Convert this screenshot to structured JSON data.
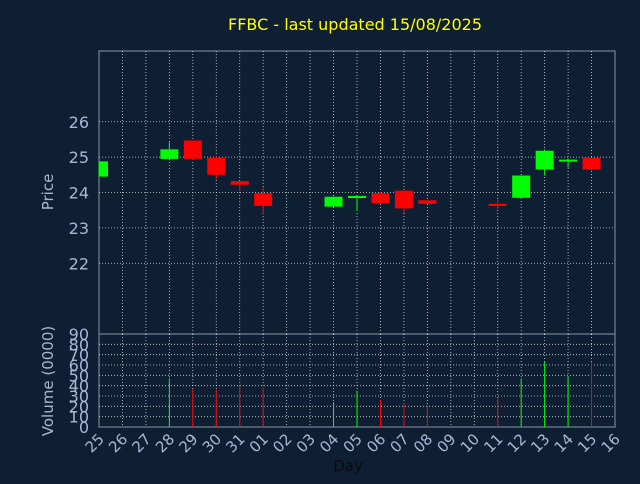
{
  "chart_data": [
    {
      "type": "candlestick",
      "title": "FFBC - last updated 15/08/2025",
      "xlabel": "",
      "ylabel": "Price",
      "ylim": [
        20,
        28
      ],
      "yticks": [
        22,
        23,
        24,
        25,
        26
      ],
      "grid": true,
      "colors": {
        "up": "#00ff00",
        "down": "#ff0000",
        "title": "#ffff00",
        "axis_text": "#a6b8d6",
        "grid": "#ffffff",
        "plot_bg": "#0f1f33"
      },
      "candles": [
        {
          "date": "25",
          "open": 24.45,
          "close": 24.88,
          "high": 24.88,
          "low": 24.45
        },
        {
          "date": "28",
          "open": 24.95,
          "close": 25.22,
          "high": 25.42,
          "low": 24.95
        },
        {
          "date": "29",
          "open": 25.47,
          "close": 24.95,
          "high": 25.47,
          "low": 24.92
        },
        {
          "date": "30",
          "open": 24.98,
          "close": 24.5,
          "high": 25.05,
          "low": 24.38
        },
        {
          "date": "31",
          "open": 24.32,
          "close": 24.22,
          "high": 24.32,
          "low": 24.05
        },
        {
          "date": "01",
          "open": 23.98,
          "close": 23.62,
          "high": 24.15,
          "low": 23.4
        },
        {
          "date": "04",
          "open": 23.6,
          "close": 23.88,
          "high": 23.88,
          "low": 23.6
        },
        {
          "date": "05",
          "open": 23.86,
          "close": 23.9,
          "high": 23.9,
          "low": 23.48
        },
        {
          "date": "06",
          "open": 23.98,
          "close": 23.7,
          "high": 24.02,
          "low": 23.7
        },
        {
          "date": "07",
          "open": 24.05,
          "close": 23.55,
          "high": 24.05,
          "low": 23.42
        },
        {
          "date": "08",
          "open": 23.78,
          "close": 23.68,
          "high": 23.78,
          "low": 23.68
        },
        {
          "date": "11",
          "open": 23.68,
          "close": 23.62,
          "high": 23.8,
          "low": 23.52
        },
        {
          "date": "12",
          "open": 23.85,
          "close": 24.48,
          "high": 24.48,
          "low": 23.85
        },
        {
          "date": "13",
          "open": 24.65,
          "close": 25.18,
          "high": 25.22,
          "low": 24.48
        },
        {
          "date": "14",
          "open": 24.88,
          "close": 24.93,
          "high": 24.96,
          "low": 24.7
        },
        {
          "date": "15",
          "open": 24.98,
          "close": 24.65,
          "high": 24.98,
          "low": 24.6
        }
      ]
    },
    {
      "type": "bar",
      "xlabel": "Day",
      "ylabel": "Volume (0000)",
      "ylim": [
        0,
        90
      ],
      "yticks": [
        0,
        10,
        20,
        30,
        40,
        50,
        60,
        70,
        80,
        90
      ],
      "categories": [
        "25",
        "26",
        "27",
        "28",
        "29",
        "30",
        "31",
        "01",
        "02",
        "03",
        "04",
        "05",
        "06",
        "07",
        "08",
        "09",
        "10",
        "11",
        "12",
        "13",
        "14",
        "15",
        "16"
      ],
      "bars": [
        {
          "date": "25",
          "value": 0,
          "dir": "up"
        },
        {
          "date": "28",
          "value": 47,
          "dir": "up"
        },
        {
          "date": "29",
          "value": 37,
          "dir": "down"
        },
        {
          "date": "30",
          "value": 36,
          "dir": "down"
        },
        {
          "date": "31",
          "value": 40,
          "dir": "down"
        },
        {
          "date": "01",
          "value": 38,
          "dir": "down"
        },
        {
          "date": "04",
          "value": 24,
          "dir": "up"
        },
        {
          "date": "05",
          "value": 34,
          "dir": "up"
        },
        {
          "date": "06",
          "value": 26,
          "dir": "down"
        },
        {
          "date": "07",
          "value": 23,
          "dir": "down"
        },
        {
          "date": "08",
          "value": 21,
          "dir": "down"
        },
        {
          "date": "11",
          "value": 28,
          "dir": "down"
        },
        {
          "date": "12",
          "value": 47,
          "dir": "up"
        },
        {
          "date": "13",
          "value": 63,
          "dir": "up"
        },
        {
          "date": "14",
          "value": 49,
          "dir": "up"
        },
        {
          "date": "15",
          "value": 63,
          "dir": "down"
        }
      ]
    }
  ]
}
